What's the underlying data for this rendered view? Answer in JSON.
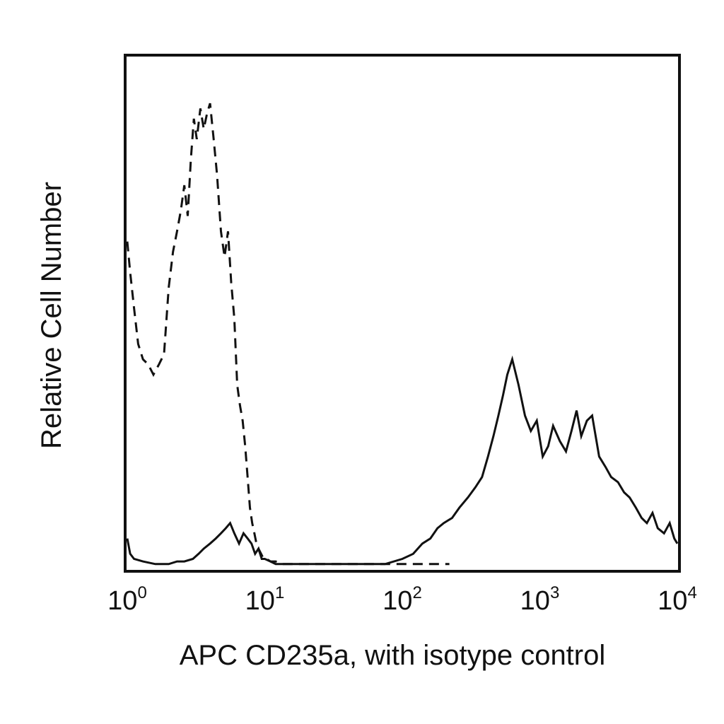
{
  "chart_data": {
    "type": "line",
    "title": "",
    "xlabel": "APC CD235a, with isotype control",
    "ylabel": "Relative Cell Number",
    "x_scale": "log",
    "xlim": [
      1,
      10000
    ],
    "ylim": [
      0,
      100
    ],
    "x_ticks": [
      {
        "base": "10",
        "exp": "0"
      },
      {
        "base": "10",
        "exp": "1"
      },
      {
        "base": "10",
        "exp": "2"
      },
      {
        "base": "10",
        "exp": "3"
      },
      {
        "base": "10",
        "exp": "4"
      }
    ],
    "grid": false,
    "legend": "none",
    "series": [
      {
        "style": "dashed",
        "color": "#111111",
        "x": [
          1.0,
          1.05,
          1.12,
          1.2,
          1.3,
          1.42,
          1.55,
          1.7,
          1.85,
          2.0,
          2.15,
          2.3,
          2.45,
          2.6,
          2.75,
          2.9,
          3.05,
          3.2,
          3.4,
          3.6,
          3.8,
          4.0,
          4.25,
          4.5,
          4.8,
          5.1,
          5.4,
          5.7,
          6.0,
          6.3,
          6.6,
          6.9,
          7.2,
          7.5,
          7.8,
          8.1,
          8.4,
          8.7,
          9.0,
          9.4,
          9.8,
          10.3,
          11.0,
          12.0,
          13.5,
          15.0,
          17.0,
          20.0,
          25.0,
          30.0,
          40.0,
          55.0,
          75.0,
          100.0,
          130.0,
          170.0,
          220.0
        ],
        "y": [
          64,
          58,
          51,
          44,
          41,
          40,
          38,
          40,
          42,
          55,
          62,
          66,
          70,
          75,
          69,
          80,
          88,
          84,
          90,
          86,
          89,
          91,
          84,
          77,
          66,
          61,
          66,
          56,
          49,
          36,
          32,
          29,
          24,
          18,
          12,
          9,
          7,
          5,
          4,
          3,
          2,
          2,
          1.5,
          1.5,
          1,
          1,
          1,
          1,
          1,
          1,
          1,
          1,
          1,
          1,
          1,
          1,
          1
        ]
      },
      {
        "style": "solid",
        "color": "#111111",
        "x": [
          1.0,
          1.05,
          1.12,
          1.3,
          1.6,
          2.0,
          2.3,
          2.6,
          3.0,
          3.3,
          3.6,
          4.0,
          4.4,
          4.8,
          5.2,
          5.6,
          6.0,
          6.5,
          7.0,
          7.5,
          8.0,
          8.5,
          9.0,
          9.5,
          10.0,
          11.0,
          12.0,
          14.0,
          17.0,
          20.0,
          25.0,
          30.0,
          40.0,
          55.0,
          75.0,
          100.0,
          120.0,
          140.0,
          160.0,
          180.0,
          200.0,
          230.0,
          260.0,
          300.0,
          340.0,
          380.0,
          420.0,
          460.0,
          500.0,
          540.0,
          580.0,
          630.0,
          700.0,
          780.0,
          860.0,
          950.0,
          1050.0,
          1150.0,
          1250.0,
          1400.0,
          1550.0,
          1700.0,
          1850.0,
          2000.0,
          2200.0,
          2400.0,
          2700.0,
          3000.0,
          3300.0,
          3700.0,
          4100.0,
          4500.0,
          5000.0,
          5500.0,
          6000.0,
          6600.0,
          7200.0,
          8000.0,
          8800.0,
          9500.0,
          10000.0
        ],
        "y": [
          6,
          3,
          2,
          1.5,
          1,
          1,
          1.5,
          1.5,
          2,
          3,
          4,
          5,
          6,
          7,
          8,
          9,
          7,
          5,
          7,
          6,
          5,
          3,
          4,
          2,
          2,
          1.5,
          1,
          1,
          1,
          1,
          1,
          1,
          1,
          1,
          1,
          2,
          3,
          5,
          6,
          8,
          9,
          10,
          12,
          14,
          16,
          18,
          22,
          26,
          30,
          34,
          38,
          41,
          36,
          30,
          27,
          29,
          22,
          24,
          28,
          25,
          23,
          27,
          31,
          26,
          29,
          30,
          22,
          20,
          18,
          17,
          15,
          14,
          12,
          10,
          9,
          11,
          8,
          7,
          9,
          6,
          5
        ]
      }
    ]
  }
}
